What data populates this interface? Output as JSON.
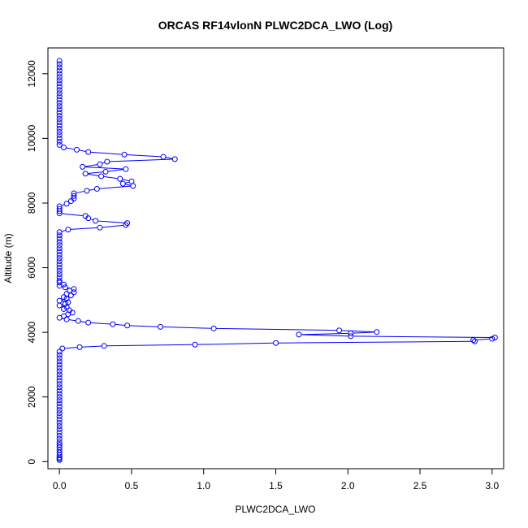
{
  "chart_data": {
    "type": "line",
    "title": "ORCAS RF14vlonN PLWC2DCA_LWO (Log)",
    "xlabel": "PLWC2DCA_LWO",
    "ylabel": "Altitude (m)",
    "xlim": [
      -0.08,
      3.08
    ],
    "ylim": [
      -220,
      12800
    ],
    "x_ticks": [
      0.0,
      0.5,
      1.0,
      1.5,
      2.0,
      2.5,
      3.0
    ],
    "x_tick_labels": [
      "0.0",
      "0.5",
      "1.0",
      "1.5",
      "2.0",
      "2.5",
      "3.0"
    ],
    "y_ticks": [
      0,
      2000,
      4000,
      6000,
      8000,
      10000,
      12000
    ],
    "y_tick_labels": [
      "0",
      "2000",
      "4000",
      "6000",
      "8000",
      "10000",
      "12000"
    ],
    "grid": false,
    "marker": "open-circle",
    "line_color": "#0000ff",
    "series": [
      {
        "points": [
          [
            0.0,
            50
          ],
          [
            0.0,
            90
          ],
          [
            0.0,
            130
          ],
          [
            0.0,
            200
          ],
          [
            0.0,
            280
          ],
          [
            0.0,
            360
          ],
          [
            0.0,
            440
          ],
          [
            0.0,
            520
          ],
          [
            0.0,
            600
          ],
          [
            0.0,
            700
          ],
          [
            0.0,
            800
          ],
          [
            0.0,
            900
          ],
          [
            0.0,
            1000
          ],
          [
            0.0,
            1100
          ],
          [
            0.0,
            1200
          ],
          [
            0.0,
            1300
          ],
          [
            0.0,
            1400
          ],
          [
            0.0,
            1500
          ],
          [
            0.0,
            1600
          ],
          [
            0.0,
            1700
          ],
          [
            0.0,
            1800
          ],
          [
            0.0,
            1900
          ],
          [
            0.0,
            2000
          ],
          [
            0.0,
            2100
          ],
          [
            0.0,
            2200
          ],
          [
            0.0,
            2300
          ],
          [
            0.0,
            2400
          ],
          [
            0.0,
            2500
          ],
          [
            0.0,
            2600
          ],
          [
            0.0,
            2700
          ],
          [
            0.0,
            2800
          ],
          [
            0.0,
            2900
          ],
          [
            0.0,
            3000
          ],
          [
            0.0,
            3100
          ],
          [
            0.0,
            3200
          ],
          [
            0.0,
            3300
          ],
          [
            0.0,
            3400
          ],
          [
            0.02,
            3500
          ],
          [
            0.14,
            3540
          ],
          [
            0.31,
            3580
          ],
          [
            0.94,
            3620
          ],
          [
            1.5,
            3670
          ],
          [
            2.88,
            3720
          ],
          [
            2.87,
            3760
          ],
          [
            3.0,
            3800
          ],
          [
            3.02,
            3840
          ],
          [
            2.02,
            3880
          ],
          [
            1.66,
            3930
          ],
          [
            2.02,
            3970
          ],
          [
            2.2,
            4010
          ],
          [
            1.94,
            4060
          ],
          [
            1.07,
            4120
          ],
          [
            0.7,
            4170
          ],
          [
            0.47,
            4210
          ],
          [
            0.37,
            4250
          ],
          [
            0.2,
            4300
          ],
          [
            0.13,
            4350
          ],
          [
            0.05,
            4400
          ],
          [
            0.0,
            4450
          ],
          [
            0.03,
            4500
          ],
          [
            0.06,
            4560
          ],
          [
            0.09,
            4610
          ],
          [
            0.07,
            4680
          ],
          [
            0.03,
            4720
          ],
          [
            0.05,
            4780
          ],
          [
            0.0,
            4830
          ],
          [
            0.04,
            4880
          ],
          [
            0.06,
            4930
          ],
          [
            0.0,
            4980
          ],
          [
            0.05,
            5040
          ],
          [
            0.03,
            5090
          ],
          [
            0.08,
            5140
          ],
          [
            0.05,
            5190
          ],
          [
            0.1,
            5240
          ],
          [
            0.07,
            5290
          ],
          [
            0.1,
            5340
          ],
          [
            0.04,
            5390
          ],
          [
            0.0,
            5440
          ],
          [
            0.03,
            5480
          ],
          [
            0.0,
            5540
          ],
          [
            0.0,
            5600
          ],
          [
            0.0,
            5700
          ],
          [
            0.0,
            5800
          ],
          [
            0.0,
            5900
          ],
          [
            0.0,
            6000
          ],
          [
            0.0,
            6100
          ],
          [
            0.0,
            6200
          ],
          [
            0.0,
            6300
          ],
          [
            0.0,
            6400
          ],
          [
            0.0,
            6500
          ],
          [
            0.0,
            6600
          ],
          [
            0.0,
            6700
          ],
          [
            0.0,
            6800
          ],
          [
            0.0,
            6900
          ],
          [
            0.0,
            7000
          ],
          [
            0.0,
            7100
          ],
          [
            0.06,
            7180
          ],
          [
            0.28,
            7240
          ],
          [
            0.46,
            7320
          ],
          [
            0.47,
            7380
          ],
          [
            0.25,
            7450
          ],
          [
            0.2,
            7530
          ],
          [
            0.18,
            7600
          ],
          [
            0.0,
            7680
          ],
          [
            0.0,
            7750
          ],
          [
            0.0,
            7820
          ],
          [
            0.0,
            7900
          ],
          [
            0.05,
            7980
          ],
          [
            0.08,
            8060
          ],
          [
            0.1,
            8140
          ],
          [
            0.1,
            8220
          ],
          [
            0.1,
            8300
          ],
          [
            0.19,
            8380
          ],
          [
            0.26,
            8440
          ],
          [
            0.51,
            8530
          ],
          [
            0.44,
            8600
          ],
          [
            0.5,
            8670
          ],
          [
            0.42,
            8750
          ],
          [
            0.29,
            8830
          ],
          [
            0.18,
            8910
          ],
          [
            0.32,
            8970
          ],
          [
            0.46,
            9050
          ],
          [
            0.16,
            9120
          ],
          [
            0.28,
            9200
          ],
          [
            0.33,
            9280
          ],
          [
            0.8,
            9360
          ],
          [
            0.72,
            9430
          ],
          [
            0.45,
            9500
          ],
          [
            0.2,
            9580
          ],
          [
            0.12,
            9650
          ],
          [
            0.03,
            9720
          ],
          [
            0.0,
            9800
          ],
          [
            0.0,
            9900
          ],
          [
            0.0,
            10000
          ],
          [
            0.0,
            10100
          ],
          [
            0.0,
            10200
          ],
          [
            0.0,
            10300
          ],
          [
            0.0,
            10400
          ],
          [
            0.0,
            10500
          ],
          [
            0.0,
            10600
          ],
          [
            0.0,
            10700
          ],
          [
            0.0,
            10800
          ],
          [
            0.0,
            10900
          ],
          [
            0.0,
            11000
          ],
          [
            0.0,
            11100
          ],
          [
            0.0,
            11200
          ],
          [
            0.0,
            11300
          ],
          [
            0.0,
            11400
          ],
          [
            0.0,
            11500
          ],
          [
            0.0,
            11600
          ],
          [
            0.0,
            11700
          ],
          [
            0.0,
            11800
          ],
          [
            0.0,
            11900
          ],
          [
            0.0,
            12000
          ],
          [
            0.0,
            12100
          ],
          [
            0.0,
            12200
          ],
          [
            0.0,
            12300
          ],
          [
            0.0,
            12400
          ]
        ]
      }
    ]
  }
}
